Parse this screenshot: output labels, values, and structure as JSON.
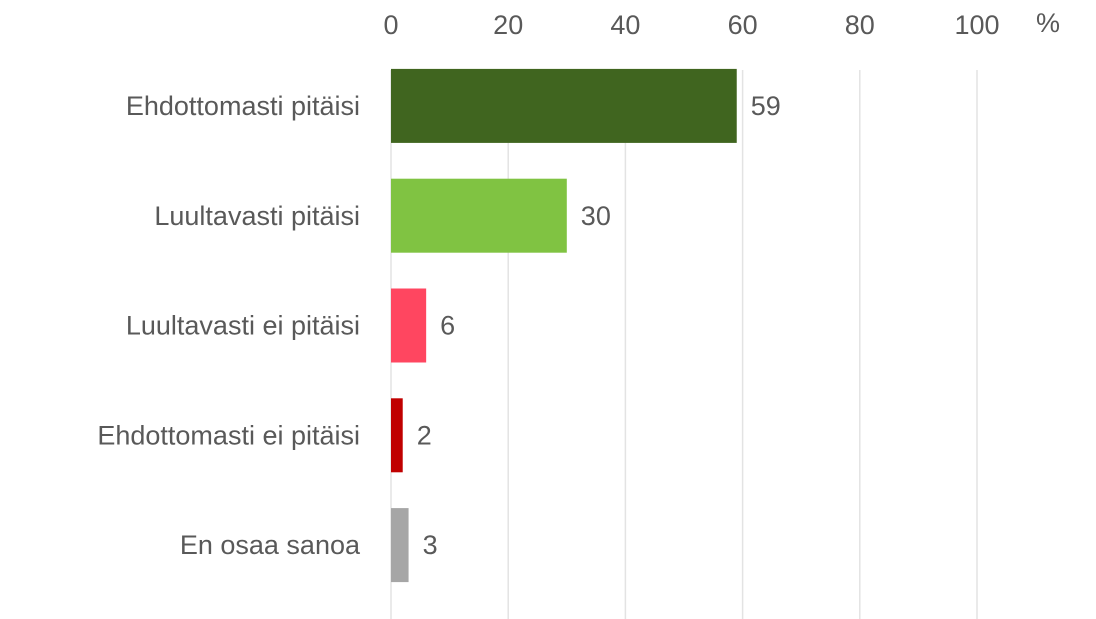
{
  "chart_data": {
    "type": "bar",
    "orientation": "horizontal",
    "categories": [
      "Ehdottomasti pitäisi",
      "Luultavasti pitäisi",
      "Luultavasti ei pitäisi",
      "Ehdottomasti ei pitäisi",
      "En osaa sanoa"
    ],
    "values": [
      59,
      30,
      6,
      2,
      3
    ],
    "colors": [
      "#40651f",
      "#80c342",
      "#ff4660",
      "#c00000",
      "#a6a6a6"
    ],
    "xlabel": "%",
    "xlim": [
      0,
      100
    ],
    "xticks": [
      0,
      20,
      40,
      60,
      80,
      100
    ],
    "grid": true,
    "data_labels": true
  }
}
